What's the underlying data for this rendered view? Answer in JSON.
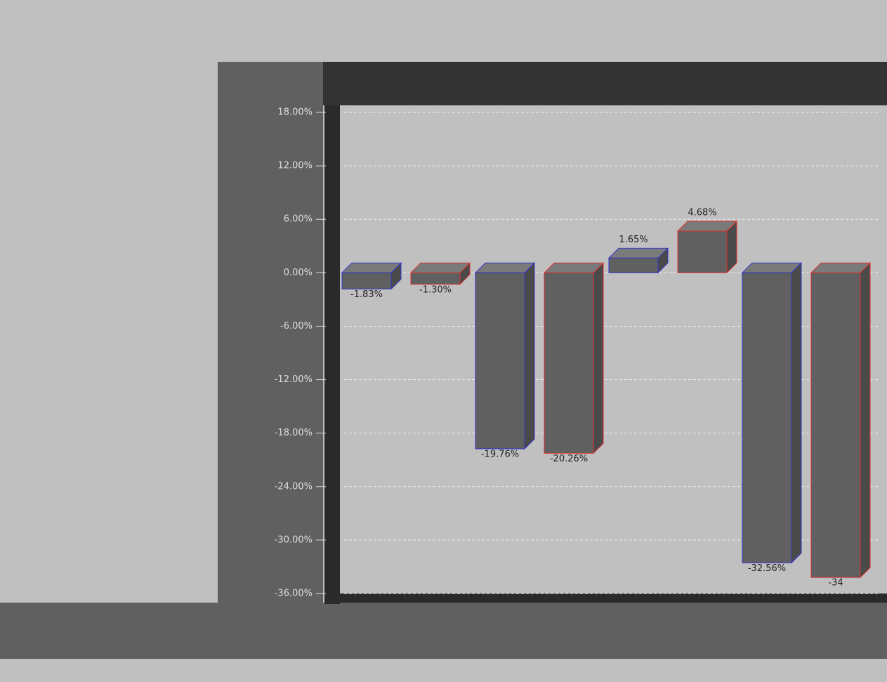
{
  "chart_data": {
    "type": "bar",
    "categories": [
      null,
      null,
      null,
      null
    ],
    "series": [
      {
        "color": "#3333cc",
        "values": [
          -1.83,
          -19.76,
          1.65,
          -32.56
        ],
        "value_labels": [
          "-1.83%",
          "-19.76%",
          "1.65%",
          "-32.56%"
        ]
      },
      {
        "color": "#e03030",
        "values": [
          -1.3,
          -20.26,
          4.68,
          -34.2
        ],
        "value_labels": [
          "-1.30%",
          "-20.26%",
          "4.68%",
          "-34"
        ]
      }
    ],
    "ylim": [
      -36,
      18
    ],
    "yticks": [
      {
        "value": 18,
        "label": "18.00%"
      },
      {
        "value": 12,
        "label": "12.00%"
      },
      {
        "value": 6,
        "label": "6.00%"
      },
      {
        "value": 0,
        "label": "0.00%"
      },
      {
        "value": -6,
        "label": "-6.00%"
      },
      {
        "value": -12,
        "label": "-12.00%"
      },
      {
        "value": -18,
        "label": "-18.00%"
      },
      {
        "value": -24,
        "label": "-24.00%"
      },
      {
        "value": -30,
        "label": "-30.00%"
      },
      {
        "value": -36,
        "label": "-36.00%"
      }
    ],
    "grid": true
  }
}
